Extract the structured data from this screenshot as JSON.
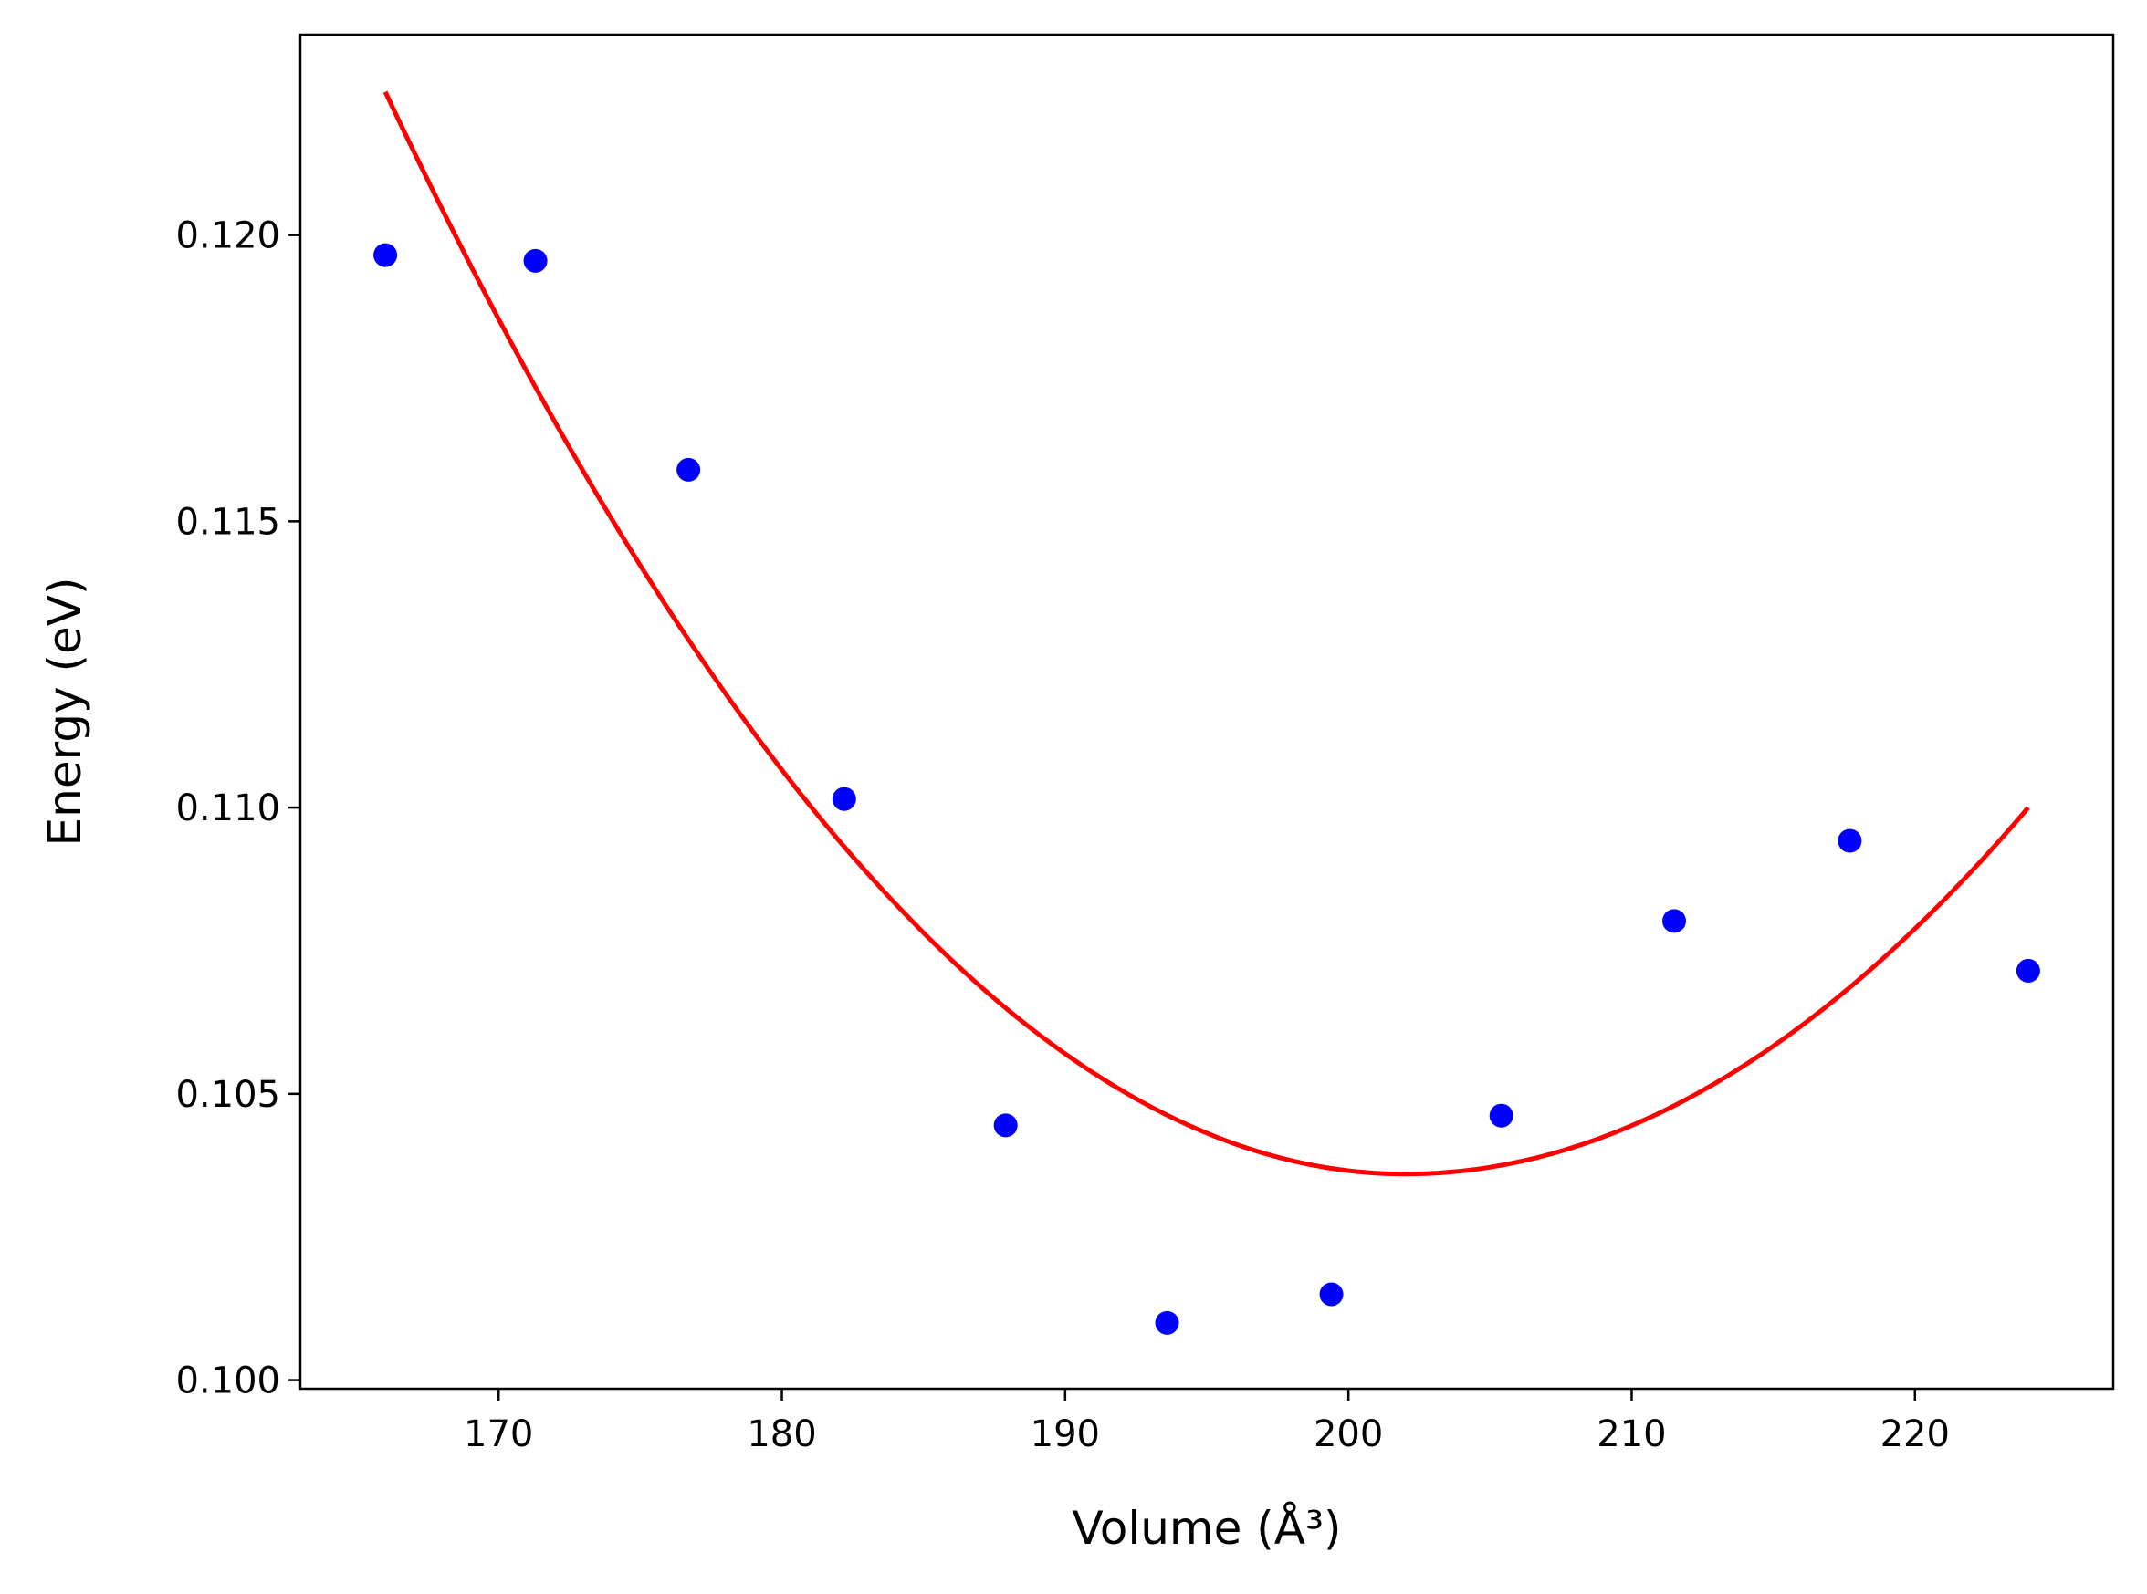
{
  "chart_data": {
    "type": "scatter",
    "title": "",
    "xlabel": "Volume (Å³)",
    "ylabel": "Energy (eV)",
    "xlim": [
      163.0,
      227.0
    ],
    "ylim": [
      0.09985,
      0.1235
    ],
    "xticks": [
      170,
      180,
      190,
      200,
      210,
      220
    ],
    "yticks": [
      0.1,
      0.105,
      0.11,
      0.115,
      0.12
    ],
    "xtick_labels": [
      "170",
      "180",
      "190",
      "200",
      "210",
      "220"
    ],
    "ytick_labels": [
      "0.100",
      "0.105",
      "0.110",
      "0.115",
      "0.120"
    ],
    "grid": false,
    "series": [
      {
        "kind": "points",
        "color": "#0000ff",
        "x": [
          166.0,
          171.3,
          176.7,
          182.2,
          187.9,
          193.6,
          199.4,
          205.4,
          211.5,
          217.7,
          224.0
        ],
        "y": [
          0.11965,
          0.11955,
          0.1159,
          0.11015,
          0.10445,
          0.101,
          0.1015,
          0.10462,
          0.10802,
          0.10942,
          0.10715
        ]
      },
      {
        "kind": "fit-curve",
        "color": "#ff0000",
        "vertex_x": 202.0,
        "vertex_y": 0.1036,
        "x_start": 166.0,
        "y_start": 0.1225,
        "x_end": 224.0,
        "y_end": 0.11
      }
    ]
  }
}
